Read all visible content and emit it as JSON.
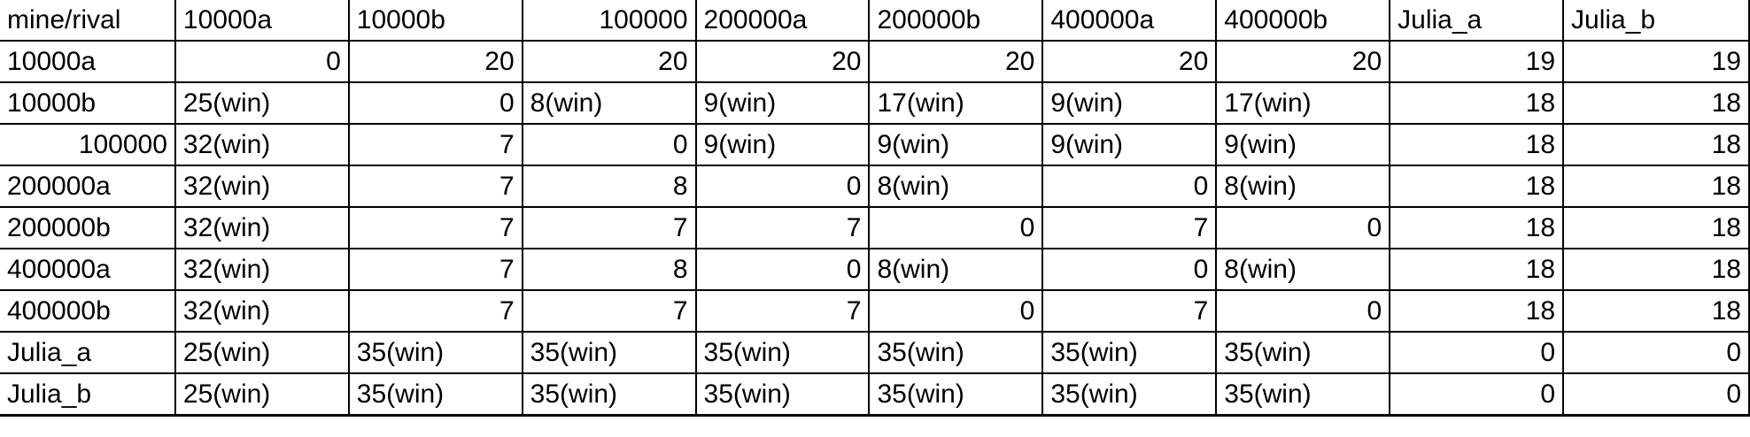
{
  "table": {
    "rows": [
      [
        "mine/rival",
        "10000a",
        "10000b",
        "100000",
        "200000a",
        "200000b",
        "400000a",
        "400000b",
        "Julia_a",
        "Julia_b"
      ],
      [
        "10000a",
        "0",
        "20",
        "20",
        "20",
        "20",
        "20",
        "20",
        "19",
        "19"
      ],
      [
        "10000b",
        "25(win)",
        "0",
        "8(win)",
        "9(win)",
        "17(win)",
        "9(win)",
        "17(win)",
        "18",
        "18"
      ],
      [
        "100000",
        "32(win)",
        "7",
        "0",
        "9(win)",
        "9(win)",
        "9(win)",
        "9(win)",
        "18",
        "18"
      ],
      [
        "200000a",
        "32(win)",
        "7",
        "8",
        "0",
        "8(win)",
        "0",
        "8(win)",
        "18",
        "18"
      ],
      [
        "200000b",
        "32(win)",
        "7",
        "7",
        "7",
        "0",
        "7",
        "0",
        "18",
        "18"
      ],
      [
        "400000a",
        "32(win)",
        "7",
        "8",
        "0",
        "8(win)",
        "0",
        "8(win)",
        "18",
        "18"
      ],
      [
        "400000b",
        "32(win)",
        "7",
        "7",
        "7",
        "0",
        "7",
        "0",
        "18",
        "18"
      ],
      [
        "Julia_a",
        "25(win)",
        "35(win)",
        "35(win)",
        "35(win)",
        "35(win)",
        "35(win)",
        "35(win)",
        "0",
        "0"
      ],
      [
        "Julia_b",
        "25(win)",
        "35(win)",
        "35(win)",
        "35(win)",
        "35(win)",
        "35(win)",
        "35(win)",
        "0",
        "0"
      ]
    ]
  }
}
